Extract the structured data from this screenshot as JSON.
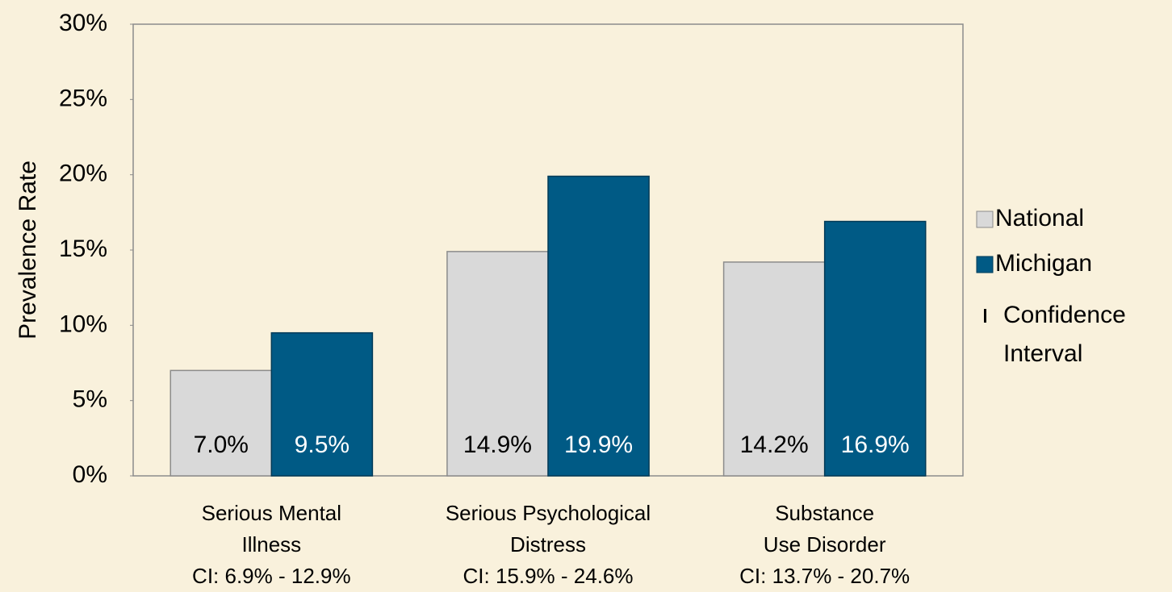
{
  "chart_data": {
    "type": "bar",
    "y_axis_label": "Prevalence Rate",
    "categories": [
      [
        "Serious Mental",
        "Illness",
        "CI: 6.9% - 12.9%"
      ],
      [
        "Serious Psychological",
        "Distress",
        "CI: 15.9% - 24.6%"
      ],
      [
        "Substance",
        "Use Disorder",
        "CI: 13.7% - 20.7%"
      ]
    ],
    "series": [
      {
        "name": "National",
        "color": "#d9d9d9",
        "values": [
          7.0,
          14.9,
          14.2
        ],
        "value_labels": [
          "7.0%",
          "14.9%",
          "14.2%"
        ]
      },
      {
        "name": "Michigan",
        "color": "#005a85",
        "values": [
          9.5,
          19.9,
          16.9
        ],
        "value_labels": [
          "9.5%",
          "19.9%",
          "16.9%"
        ]
      }
    ],
    "confidence_interval_legend": [
      "Confidence",
      "Interval"
    ],
    "ylim": [
      0,
      30
    ],
    "yticks": [
      {
        "value": 0,
        "label": "0%"
      },
      {
        "value": 5,
        "label": "5%"
      },
      {
        "value": 10,
        "label": "10%"
      },
      {
        "value": 15,
        "label": "15%"
      },
      {
        "value": 20,
        "label": "20%"
      },
      {
        "value": 25,
        "label": "25%"
      },
      {
        "value": 30,
        "label": "30%"
      }
    ],
    "legend_position": "right"
  }
}
